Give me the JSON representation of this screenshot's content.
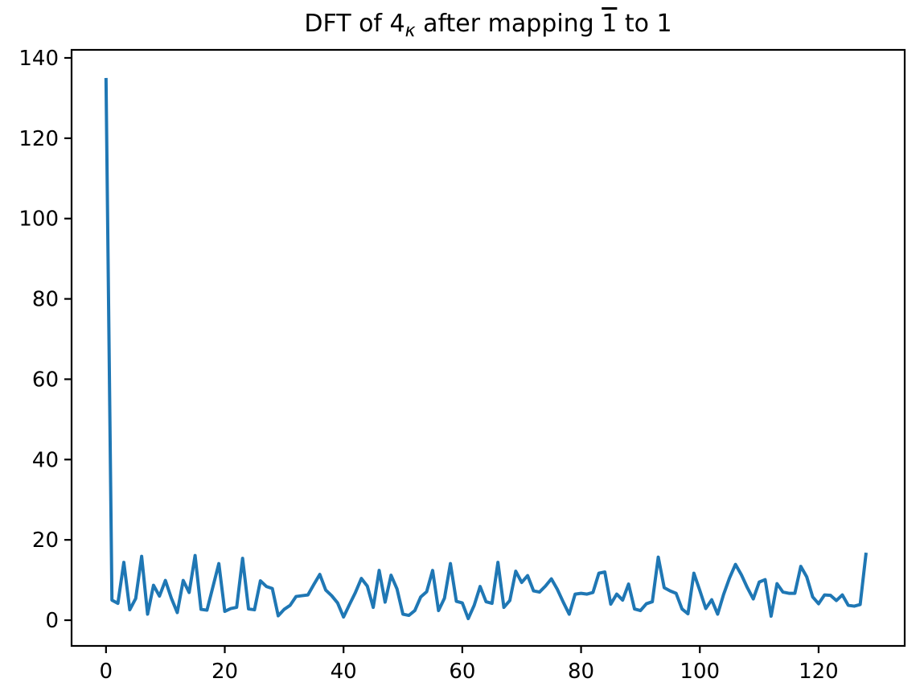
{
  "figure": {
    "title": {
      "prefix": "DFT of 4",
      "subscript": "κ",
      "middle": " after mapping ",
      "barred": "1",
      "suffix": " to 1"
    }
  },
  "chart_data": {
    "type": "line",
    "title": "DFT of 4_κ after mapping 1̄ to 1",
    "xlabel": "",
    "ylabel": "",
    "grid": false,
    "legend": null,
    "background_color": "#ffffff",
    "axis_color": "#000000",
    "line_color": "#1f77b4",
    "line_width": 4,
    "x_start": 0,
    "x_step": 1,
    "x_end": 128,
    "xlim": [
      -5.8,
      134.5
    ],
    "ylim": [
      -6.4,
      142.0
    ],
    "xticks": [
      0,
      20,
      40,
      60,
      80,
      100,
      120
    ],
    "yticks": [
      0,
      20,
      40,
      60,
      80,
      100,
      120,
      140
    ],
    "values": [
      135,
      5.0,
      4.2,
      14.4,
      2.6,
      5.4,
      15.9,
      1.5,
      8.7,
      6.0,
      9.9,
      5.5,
      1.9,
      9.9,
      6.9,
      16.1,
      2.7,
      2.5,
      8.3,
      14.1,
      2.2,
      2.9,
      3.2,
      15.4,
      2.8,
      2.6,
      9.8,
      8.4,
      7.9,
      1.1,
      2.7,
      3.7,
      5.9,
      6.1,
      6.3,
      8.9,
      11.4,
      7.5,
      6.1,
      4.3,
      0.8,
      3.9,
      6.9,
      10.4,
      8.5,
      3.2,
      12.4,
      4.5,
      11.2,
      7.8,
      1.5,
      1.2,
      2.4,
      5.8,
      7.1,
      12.4,
      2.4,
      5.5,
      14.1,
      4.7,
      4.3,
      0.4,
      3.7,
      8.4,
      4.6,
      4.2,
      14.4,
      3.2,
      4.9,
      12.2,
      9.4,
      11.1,
      7.3,
      7.0,
      8.5,
      10.3,
      7.7,
      4.5,
      1.5,
      6.5,
      6.7,
      6.5,
      6.9,
      11.7,
      12.0,
      4.0,
      6.5,
      5.0,
      9.0,
      2.8,
      2.4,
      4.1,
      4.6,
      15.7,
      8.1,
      7.3,
      6.7,
      2.8,
      1.6,
      11.7,
      7.4,
      2.9,
      5.1,
      1.5,
      6.4,
      10.5,
      13.9,
      11.3,
      8.1,
      5.3,
      9.5,
      10.1,
      1.0,
      9.1,
      7.0,
      6.7,
      6.7,
      13.4,
      10.8,
      5.8,
      4.1,
      6.3,
      6.2,
      4.9,
      6.3,
      3.7,
      3.5,
      3.9,
      16.8
    ]
  }
}
